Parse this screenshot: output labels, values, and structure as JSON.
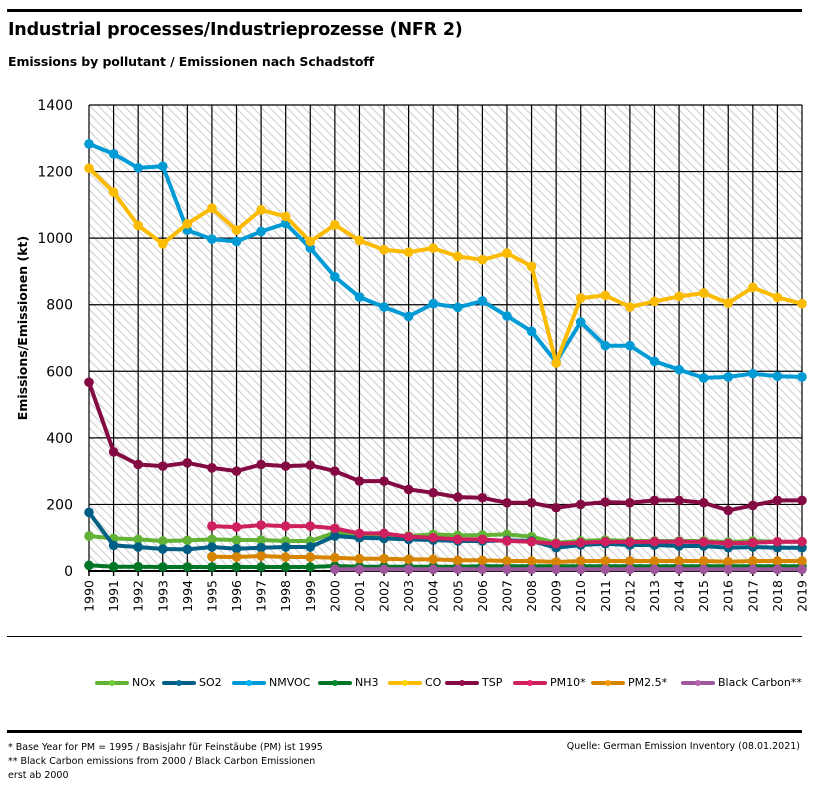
{
  "header": {
    "title": "Industrial processes/Industrieprozesse (NFR 2)",
    "subtitle": "Emissions by pollutant / Emissionen nach Schadstoff"
  },
  "footer": {
    "note1": "* Base Year for PM = 1995 / Basisjahr für Feinstäube (PM) ist 1995",
    "note2": "** Black Carbon emissions  from 2000 / Black Carbon Emissionen",
    "note3": "erst ab 2000",
    "source": "Quelle: German Emission Inventory (08.01.2021)"
  },
  "chart_data": {
    "type": "line",
    "title": "Industrial processes/Industrieprozesse (NFR 2)",
    "subtitle": "Emissions by pollutant / Emissionen nach Schadstoff",
    "xlabel": "",
    "ylabel": "Emissions/Emissionen (kt)",
    "ylim": [
      0,
      1400
    ],
    "yticks": [
      0,
      200,
      400,
      600,
      800,
      1000,
      1200,
      1400
    ],
    "grid": true,
    "plot_background": "hatched",
    "legend_position": "bottom",
    "x": [
      "1990",
      "1991",
      "1992",
      "1993",
      "1994",
      "1995",
      "1996",
      "1997",
      "1998",
      "1999",
      "2000",
      "2001",
      "2002",
      "2003",
      "2004",
      "2005",
      "2006",
      "2007",
      "2008",
      "2009",
      "2010",
      "2011",
      "2012",
      "2013",
      "2014",
      "2015",
      "2016",
      "2017",
      "2018",
      "2019"
    ],
    "series": [
      {
        "name": "NOx",
        "color": "#62b236",
        "values": [
          105,
          98,
          95,
          90,
          92,
          95,
          93,
          93,
          90,
          90,
          115,
          108,
          108,
          105,
          110,
          107,
          108,
          110,
          103,
          85,
          90,
          93,
          90,
          90,
          90,
          90,
          87,
          90,
          88,
          88
        ]
      },
      {
        "name": "SO2",
        "color": "#005f85",
        "values": [
          176,
          77,
          72,
          66,
          65,
          72,
          67,
          70,
          72,
          72,
          105,
          100,
          98,
          95,
          93,
          90,
          90,
          92,
          90,
          70,
          78,
          82,
          78,
          78,
          75,
          75,
          70,
          72,
          70,
          70
        ]
      },
      {
        "name": "NMVOC",
        "color": "#009bd5",
        "values": [
          1283,
          1253,
          1211,
          1216,
          1024,
          997,
          990,
          1020,
          1044,
          970,
          884,
          823,
          793,
          765,
          803,
          792,
          811,
          766,
          720,
          628,
          748,
          677,
          677,
          630,
          605,
          580,
          583,
          593,
          585,
          583
        ]
      },
      {
        "name": "NH3",
        "color": "#007626",
        "values": [
          17,
          13,
          13,
          12,
          12,
          12,
          12,
          12,
          12,
          12,
          15,
          13,
          13,
          13,
          13,
          13,
          14,
          14,
          14,
          14,
          14,
          14,
          14,
          14,
          14,
          14,
          14,
          14,
          14,
          14
        ]
      },
      {
        "name": "CO",
        "color": "#fabb00",
        "values": [
          1210,
          1138,
          1038,
          983,
          1043,
          1090,
          1024,
          1085,
          1065,
          990,
          1040,
          993,
          965,
          958,
          970,
          945,
          935,
          955,
          915,
          625,
          820,
          828,
          793,
          810,
          825,
          835,
          805,
          852,
          822,
          803
        ]
      },
      {
        "name": "TSP",
        "color": "#830a43",
        "values": [
          567,
          358,
          320,
          315,
          325,
          310,
          300,
          320,
          315,
          318,
          300,
          270,
          270,
          245,
          235,
          222,
          220,
          205,
          205,
          190,
          200,
          207,
          205,
          212,
          212,
          205,
          182,
          197,
          212,
          212
        ]
      },
      {
        "name": "PM10*",
        "color": "#ce1f5e",
        "values": [
          null,
          null,
          null,
          null,
          null,
          135,
          132,
          138,
          135,
          135,
          128,
          113,
          113,
          103,
          100,
          95,
          95,
          90,
          88,
          82,
          85,
          88,
          87,
          88,
          88,
          87,
          83,
          85,
          88,
          88
        ]
      },
      {
        "name": "PM2.5*",
        "color": "#d78400",
        "values": [
          null,
          null,
          null,
          null,
          null,
          43,
          42,
          45,
          42,
          42,
          40,
          37,
          37,
          35,
          35,
          32,
          32,
          30,
          30,
          27,
          30,
          30,
          30,
          30,
          30,
          30,
          28,
          30,
          30,
          30
        ]
      },
      {
        "name": "Black Carbon**",
        "color": "#9d579a",
        "values": [
          null,
          null,
          null,
          null,
          null,
          null,
          null,
          null,
          null,
          null,
          5,
          5,
          5,
          5,
          5,
          5,
          5,
          5,
          5,
          5,
          5,
          5,
          5,
          5,
          5,
          5,
          5,
          5,
          5,
          5
        ]
      }
    ]
  }
}
